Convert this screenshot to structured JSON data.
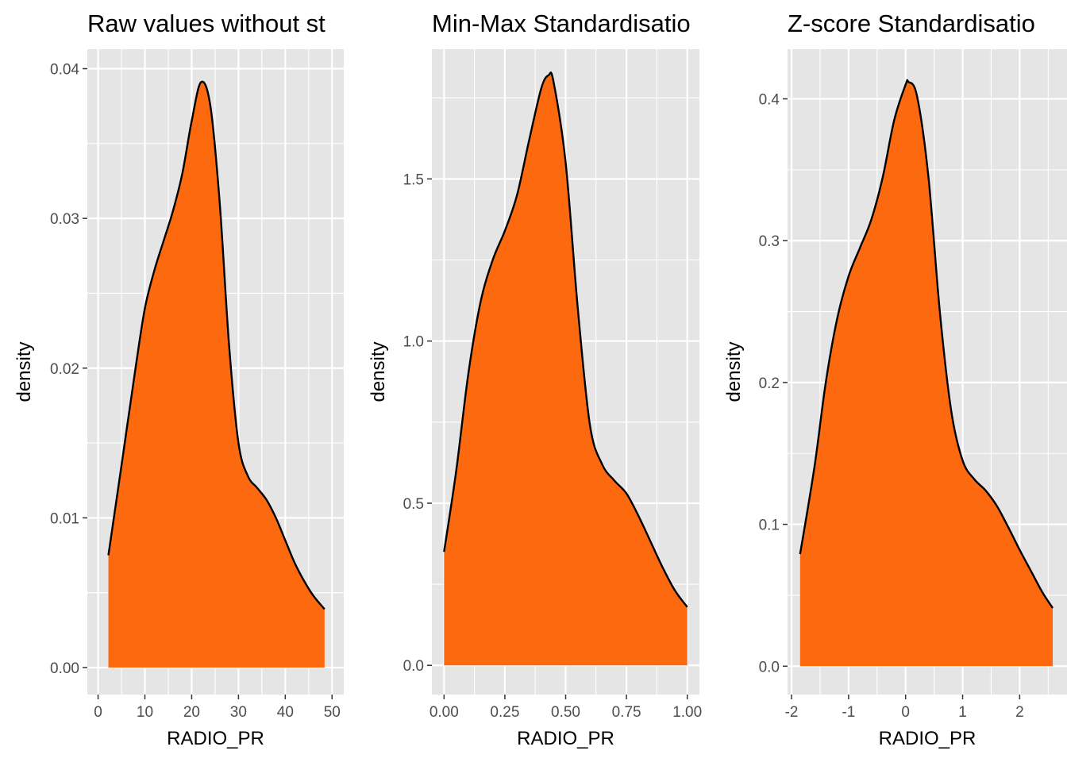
{
  "colors": {
    "panel_bg": "#e5e5e5",
    "grid": "#ffffff",
    "fill": "#fd690f",
    "line": "#000000"
  },
  "chart_data": [
    {
      "type": "area",
      "title": "Raw values without st",
      "xlabel": "RADIO_PR",
      "ylabel": "density",
      "xlim": [
        0,
        50
      ],
      "ylim": [
        0,
        0.04
      ],
      "grid": true,
      "x_ticks": [
        0,
        10,
        20,
        30,
        40,
        50
      ],
      "x_tick_labels": [
        "0",
        "10",
        "20",
        "30",
        "40",
        "50"
      ],
      "y_ticks": [
        0,
        0.01,
        0.02,
        0.03,
        0.04
      ],
      "y_tick_labels": [
        "0.00",
        "0.01",
        "0.02",
        "0.03",
        "0.04"
      ],
      "series": [
        {
          "x": [
            2.2,
            5,
            8,
            10,
            12,
            14,
            16,
            18,
            20,
            22,
            24,
            26,
            28,
            30,
            32,
            34,
            36,
            38,
            40,
            42,
            44,
            46,
            48.4
          ],
          "y": [
            0.0075,
            0.0135,
            0.02,
            0.024,
            0.0265,
            0.0285,
            0.0305,
            0.033,
            0.0365,
            0.0391,
            0.0375,
            0.031,
            0.0215,
            0.015,
            0.0128,
            0.012,
            0.0112,
            0.01,
            0.0085,
            0.007,
            0.0058,
            0.0048,
            0.0039
          ]
        }
      ]
    },
    {
      "type": "area",
      "title": "Min-Max Standardisatio",
      "xlabel": "RADIO_PR",
      "ylabel": "density",
      "xlim": [
        0,
        1
      ],
      "ylim": [
        0,
        1.8
      ],
      "grid": true,
      "x_ticks": [
        0,
        0.25,
        0.5,
        0.75,
        1
      ],
      "x_tick_labels": [
        "0.00",
        "0.25",
        "0.50",
        "0.75",
        "1.00"
      ],
      "y_ticks": [
        0,
        0.5,
        1,
        1.5
      ],
      "y_tick_labels": [
        "0.0",
        "0.5",
        "1.0",
        "1.5"
      ],
      "series": [
        {
          "x": [
            0,
            0.05,
            0.1,
            0.15,
            0.2,
            0.25,
            0.3,
            0.35,
            0.4,
            0.43,
            0.45,
            0.5,
            0.55,
            0.6,
            0.65,
            0.7,
            0.75,
            0.8,
            0.85,
            0.9,
            0.95,
            1
          ],
          "y": [
            0.35,
            0.6,
            0.9,
            1.12,
            1.25,
            1.34,
            1.45,
            1.62,
            1.78,
            1.82,
            1.8,
            1.55,
            1.1,
            0.74,
            0.62,
            0.57,
            0.53,
            0.46,
            0.38,
            0.3,
            0.23,
            0.18
          ]
        }
      ]
    },
    {
      "type": "area",
      "title": "Z-score Standardisatio",
      "xlabel": "RADIO_PR",
      "ylabel": "density",
      "xlim": [
        -2,
        2.5
      ],
      "ylim": [
        0,
        0.4
      ],
      "grid": true,
      "x_ticks": [
        -2,
        -1,
        0,
        1,
        2
      ],
      "x_tick_labels": [
        "-2",
        "-1",
        "0",
        "1",
        "2"
      ],
      "y_ticks": [
        0,
        0.1,
        0.2,
        0.3,
        0.4
      ],
      "y_tick_labels": [
        "0.0",
        "0.1",
        "0.2",
        "0.3",
        "0.4"
      ],
      "series": [
        {
          "x": [
            -1.85,
            -1.6,
            -1.4,
            -1.2,
            -1.0,
            -0.8,
            -0.6,
            -0.4,
            -0.2,
            0.0,
            0.05,
            0.2,
            0.4,
            0.6,
            0.8,
            1.0,
            1.2,
            1.4,
            1.6,
            1.8,
            2.0,
            2.2,
            2.4,
            2.58
          ],
          "y": [
            0.079,
            0.14,
            0.2,
            0.245,
            0.275,
            0.295,
            0.315,
            0.345,
            0.385,
            0.41,
            0.412,
            0.402,
            0.345,
            0.25,
            0.18,
            0.145,
            0.132,
            0.124,
            0.113,
            0.098,
            0.082,
            0.067,
            0.052,
            0.041
          ]
        }
      ]
    }
  ]
}
